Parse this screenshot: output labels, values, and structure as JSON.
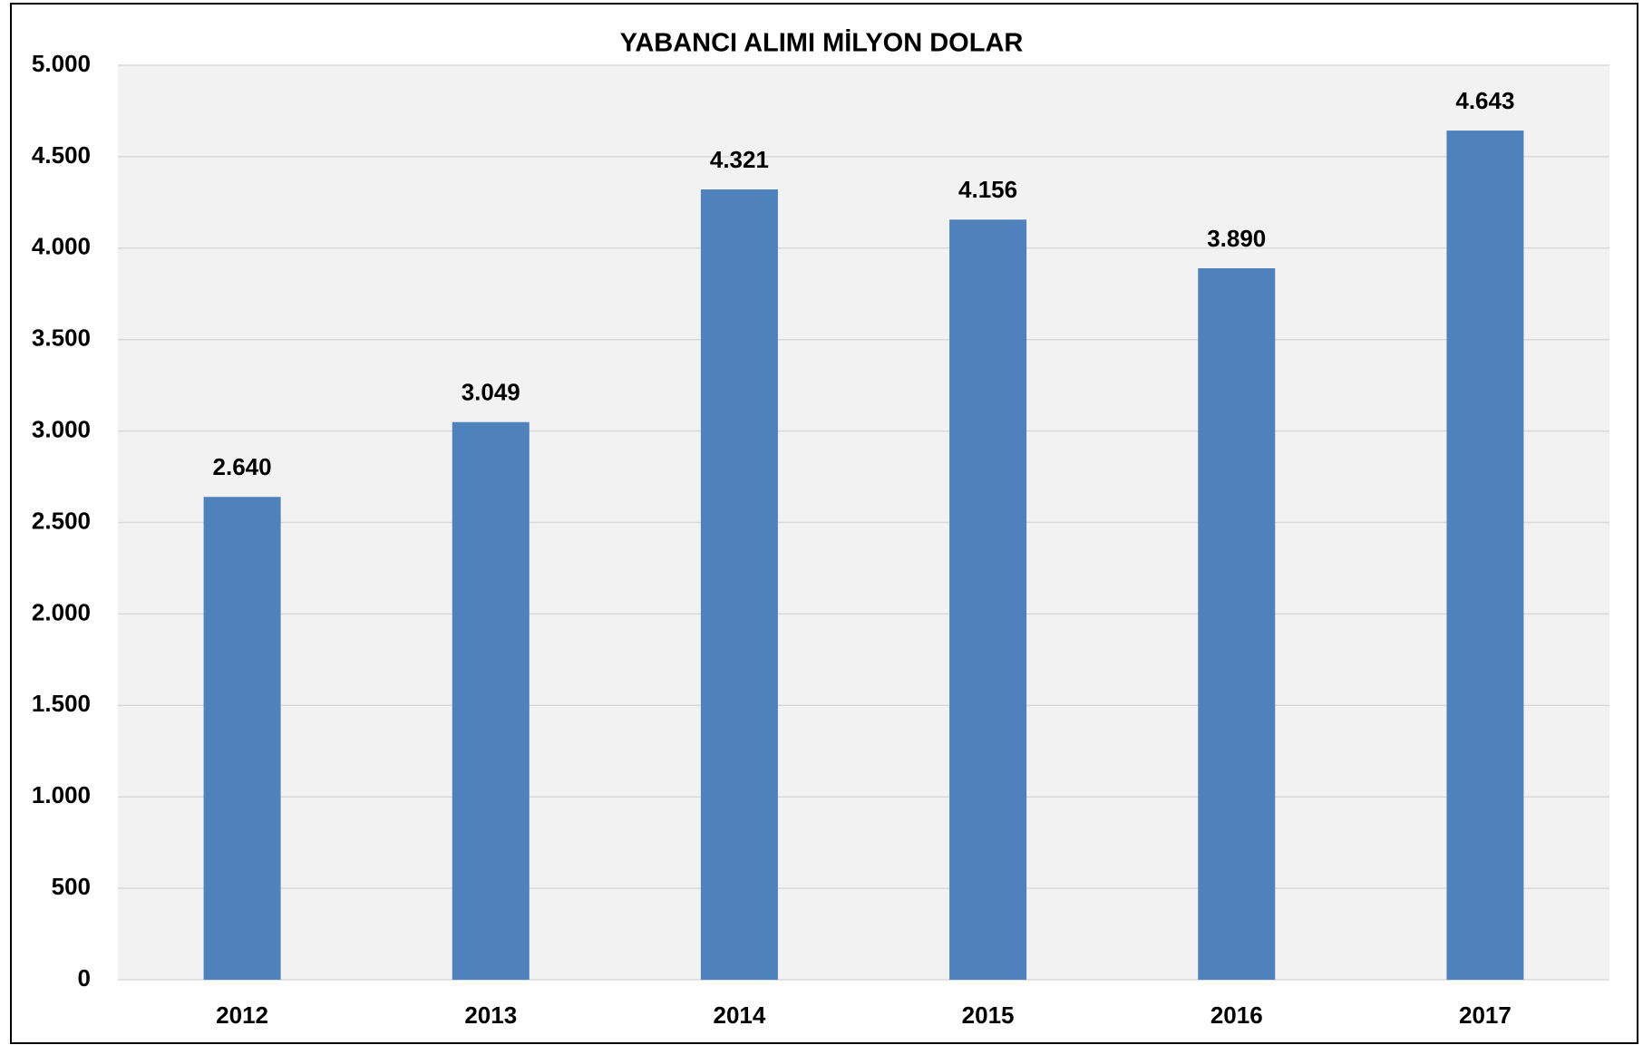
{
  "chart_data": {
    "type": "bar",
    "title": "YABANCI ALIMI MİLYON DOLAR",
    "categories": [
      "2012",
      "2013",
      "2014",
      "2015",
      "2016",
      "2017"
    ],
    "values": [
      2640,
      3049,
      4321,
      4156,
      3890,
      4643
    ],
    "value_labels": [
      "2.640",
      "3.049",
      "4.321",
      "4.156",
      "3.890",
      "4.643"
    ],
    "color": "#4f81bd",
    "ylim": [
      0,
      5000
    ],
    "yticks": [
      0,
      500,
      {
        "value": 1000,
        "label": "1.000"
      },
      {
        "value": 1500,
        "label": "1.500"
      },
      {
        "value": 2000,
        "label": "2.000"
      },
      {
        "value": 2500,
        "label": "2.500"
      },
      {
        "value": 3000,
        "label": "3.000"
      },
      {
        "value": 3500,
        "label": "3.500"
      },
      {
        "value": 4000,
        "label": "4.000"
      },
      {
        "value": 4500,
        "label": "4.500"
      },
      {
        "value": 5000,
        "label": "5.000"
      }
    ],
    "grid": true
  }
}
